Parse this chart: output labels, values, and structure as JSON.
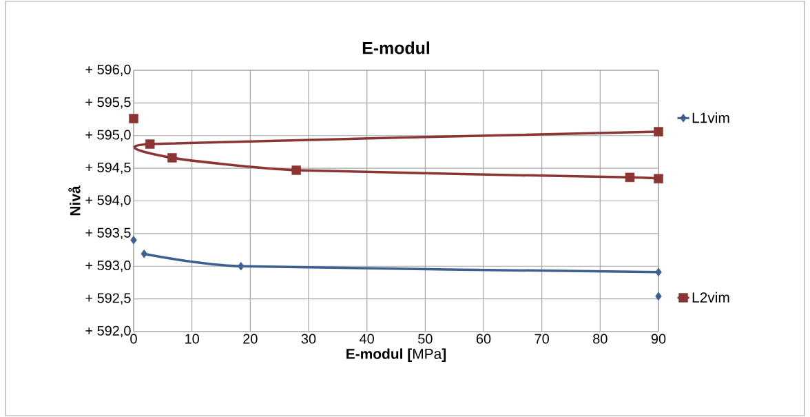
{
  "chart_data": {
    "type": "line",
    "title": "E-modul",
    "xlabel": "**E-modul [**MPa**]**",
    "ylabel": "Nivå",
    "xlim": [
      0,
      90
    ],
    "xticks": [
      0,
      10,
      20,
      30,
      40,
      50,
      60,
      70,
      80,
      90
    ],
    "ylim": [
      592,
      596
    ],
    "yticks": [
      {
        "value": 592,
        "label": "+ 592,0"
      },
      {
        "value": 592.5,
        "label": "+ 592,5"
      },
      {
        "value": 593,
        "label": "+ 593,0"
      },
      {
        "value": 593.5,
        "label": "+ 593,5"
      },
      {
        "value": 594,
        "label": "+ 594,0"
      },
      {
        "value": 594.5,
        "label": "+ 594,5"
      },
      {
        "value": 595,
        "label": "+ 595,0"
      },
      {
        "value": 595.5,
        "label": "+ 595,5"
      },
      {
        "value": 596,
        "label": "+ 596,0"
      }
    ],
    "grid": true,
    "legend": "right",
    "series": [
      {
        "name": "L1vim",
        "type": "line",
        "marker": "diamond",
        "color": "#3c6190",
        "x": [
          1.8,
          18.4,
          90
        ],
        "values": [
          593.19,
          593.0,
          592.91
        ]
      },
      {
        "type": "scatter",
        "marker": "diamond",
        "color": "#3c6190",
        "x": [
          0,
          90
        ],
        "values": [
          593.4,
          592.54
        ]
      },
      {
        "name": "L2vim",
        "type": "line",
        "marker": "square",
        "color": "#8b3535",
        "x": [
          90,
          2.8,
          6.6,
          27.9,
          85.1,
          90
        ],
        "values": [
          595.06,
          594.87,
          594.66,
          594.47,
          594.36,
          594.34
        ]
      },
      {
        "type": "scatter",
        "marker": "square",
        "color": "#8b3535",
        "x": [
          0
        ],
        "values": [
          595.26
        ]
      }
    ]
  }
}
